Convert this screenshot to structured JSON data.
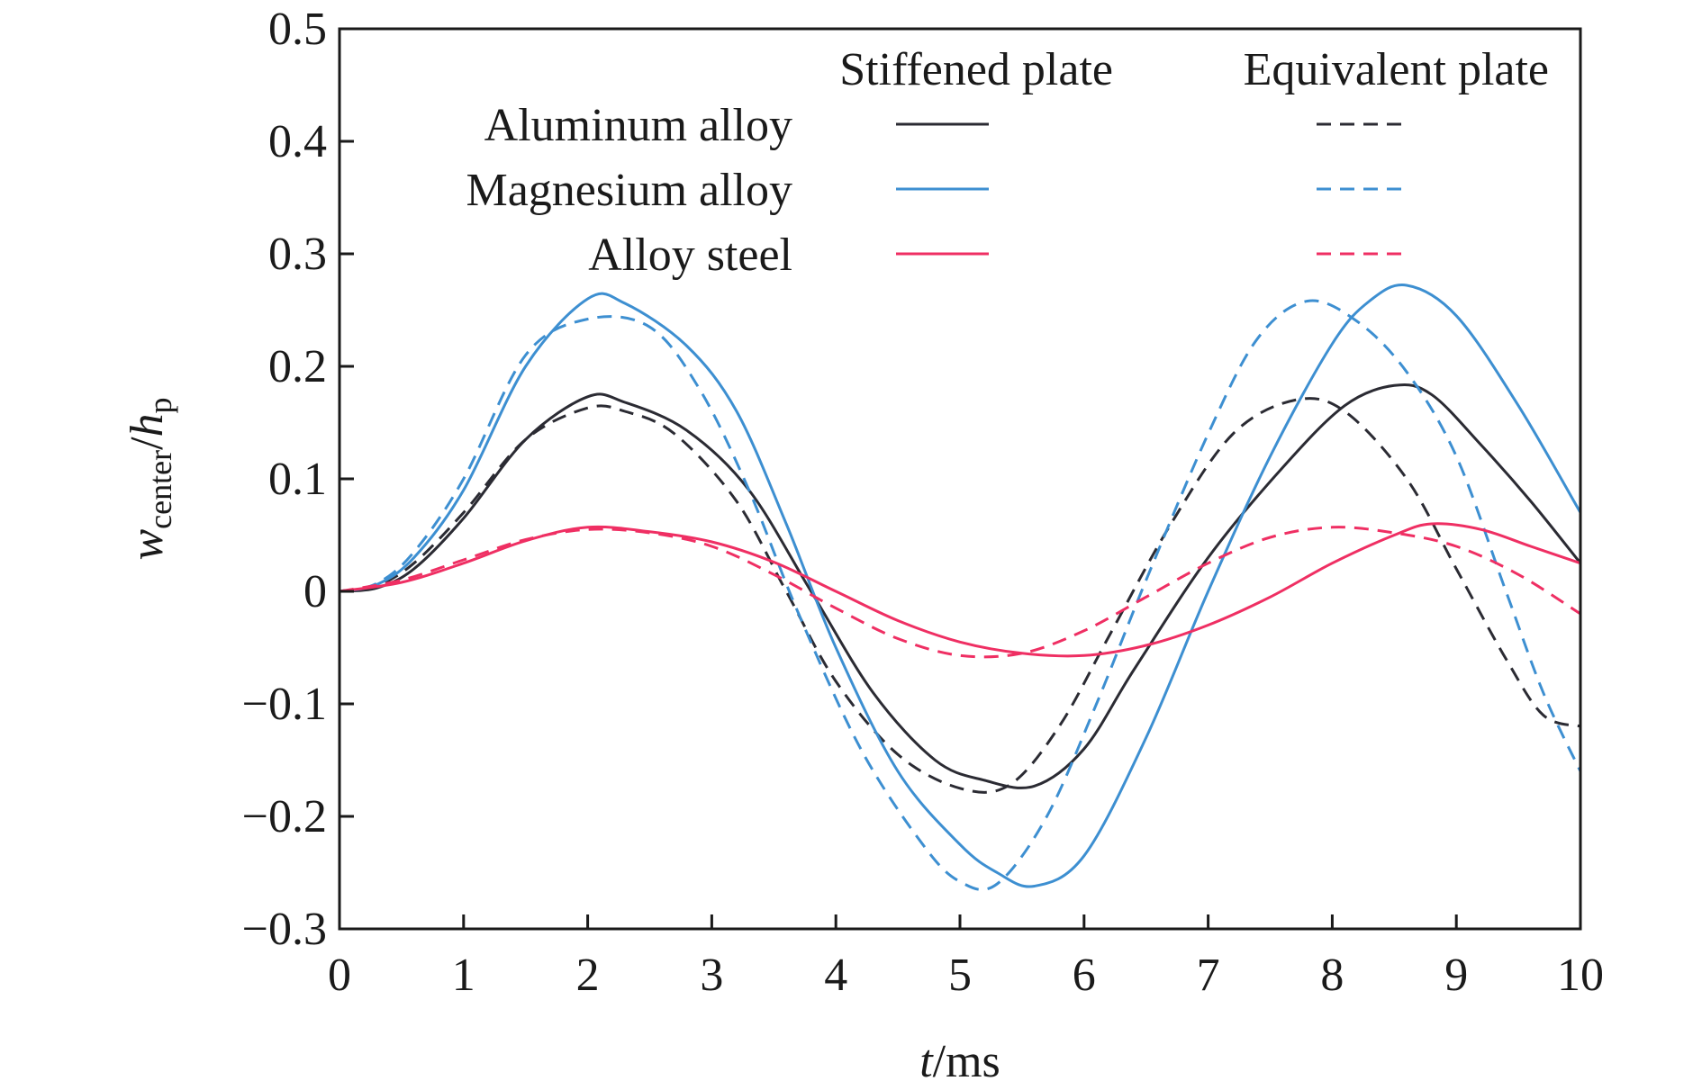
{
  "chart_data": {
    "type": "line",
    "xlabel": {
      "var": "t",
      "unit": "/ms"
    },
    "ylabel": {
      "var": "w",
      "sub1": "center",
      "sep": "/",
      "var2": "h",
      "sub2": "p"
    },
    "xlim": [
      0,
      10
    ],
    "ylim": [
      -0.3,
      0.5
    ],
    "xticks": [
      0,
      1,
      2,
      3,
      4,
      5,
      6,
      7,
      8,
      9,
      10
    ],
    "yticks": [
      0.5,
      0.4,
      0.3,
      0.2,
      0.1,
      0,
      -0.1,
      -0.2,
      -0.3
    ],
    "ytick_labels": [
      "0.5",
      "0.4",
      "0.3",
      "0.2",
      "0.1",
      "0",
      "−0.1",
      "−0.2",
      "−0.3"
    ],
    "legend": {
      "column_headers": [
        "Stiffened plate",
        "Equivalent plate"
      ],
      "rows": [
        "Aluminum alloy",
        "Magnesium alloy",
        "Alloy steel"
      ]
    },
    "colors": {
      "aluminum": "#2b2b33",
      "magnesium": "#3d8fd1",
      "steel": "#ef2f63"
    },
    "series": [
      {
        "material": "aluminum",
        "plate": "stiffened",
        "style": "solid",
        "x": [
          0,
          0.3,
          0.6,
          1.0,
          1.5,
          2.0,
          2.3,
          2.8,
          3.3,
          3.8,
          4.3,
          4.8,
          5.2,
          5.6,
          6.0,
          6.4,
          7.0,
          7.6,
          8.1,
          8.5,
          8.8,
          9.2,
          9.6,
          10.0
        ],
        "y": [
          0,
          0.003,
          0.02,
          0.065,
          0.135,
          0.173,
          0.168,
          0.143,
          0.09,
          0.0,
          -0.09,
          -0.15,
          -0.168,
          -0.173,
          -0.14,
          -0.07,
          0.03,
          0.11,
          0.165,
          0.183,
          0.175,
          0.13,
          0.08,
          0.025
        ]
      },
      {
        "material": "aluminum",
        "plate": "equivalent",
        "style": "dashed",
        "x": [
          0,
          0.3,
          0.6,
          1.0,
          1.5,
          2.0,
          2.3,
          2.7,
          3.2,
          3.6,
          4.0,
          4.5,
          5.0,
          5.4,
          5.8,
          6.2,
          6.7,
          7.2,
          7.7,
          8.1,
          8.6,
          9.0,
          9.4,
          9.7,
          10.0
        ],
        "y": [
          0,
          0.005,
          0.025,
          0.07,
          0.135,
          0.163,
          0.16,
          0.14,
          0.08,
          0.0,
          -0.08,
          -0.145,
          -0.175,
          -0.172,
          -0.12,
          -0.04,
          0.06,
          0.14,
          0.17,
          0.16,
          0.1,
          0.02,
          -0.06,
          -0.11,
          -0.12
        ]
      },
      {
        "material": "magnesium",
        "plate": "stiffened",
        "style": "solid",
        "x": [
          0,
          0.3,
          0.6,
          1.0,
          1.5,
          2.0,
          2.3,
          2.8,
          3.2,
          3.6,
          4.0,
          4.5,
          5.0,
          5.3,
          5.6,
          6.0,
          6.5,
          7.0,
          7.5,
          8.0,
          8.3,
          8.6,
          9.0,
          9.5,
          10.0
        ],
        "y": [
          0,
          0.006,
          0.03,
          0.09,
          0.2,
          0.26,
          0.256,
          0.218,
          0.16,
          0.06,
          -0.05,
          -0.16,
          -0.225,
          -0.25,
          -0.262,
          -0.235,
          -0.13,
          0.0,
          0.12,
          0.22,
          0.258,
          0.272,
          0.245,
          0.165,
          0.07
        ]
      },
      {
        "material": "magnesium",
        "plate": "equivalent",
        "style": "dashed",
        "x": [
          0,
          0.3,
          0.6,
          1.0,
          1.5,
          2.0,
          2.5,
          2.9,
          3.3,
          3.7,
          4.2,
          4.7,
          5.0,
          5.3,
          5.7,
          6.1,
          6.5,
          7.0,
          7.4,
          7.8,
          8.2,
          8.6,
          9.0,
          9.4,
          9.7,
          10.0
        ],
        "y": [
          0,
          0.007,
          0.035,
          0.1,
          0.21,
          0.242,
          0.235,
          0.18,
          0.09,
          -0.02,
          -0.14,
          -0.225,
          -0.258,
          -0.26,
          -0.2,
          -0.1,
          0.01,
          0.14,
          0.225,
          0.258,
          0.24,
          0.195,
          0.12,
          0.0,
          -0.09,
          -0.16
        ]
      },
      {
        "material": "steel",
        "plate": "stiffened",
        "style": "solid",
        "x": [
          0,
          0.5,
          1.0,
          1.5,
          2.0,
          2.5,
          3.0,
          3.5,
          4.0,
          4.5,
          5.0,
          5.5,
          6.0,
          6.5,
          7.0,
          7.5,
          8.0,
          8.5,
          8.8,
          9.2,
          9.6,
          10.0
        ],
        "y": [
          0,
          0.008,
          0.025,
          0.045,
          0.057,
          0.053,
          0.044,
          0.026,
          0.0,
          -0.026,
          -0.045,
          -0.055,
          -0.057,
          -0.048,
          -0.03,
          -0.005,
          0.025,
          0.05,
          0.06,
          0.055,
          0.04,
          0.025
        ]
      },
      {
        "material": "steel",
        "plate": "equivalent",
        "style": "dashed",
        "x": [
          0,
          0.5,
          1.0,
          1.5,
          2.0,
          2.5,
          3.0,
          3.5,
          4.0,
          4.5,
          5.0,
          5.5,
          6.0,
          6.5,
          7.0,
          7.5,
          8.0,
          8.5,
          9.0,
          9.5,
          10.0
        ],
        "y": [
          0,
          0.01,
          0.028,
          0.046,
          0.055,
          0.052,
          0.04,
          0.015,
          -0.015,
          -0.042,
          -0.057,
          -0.055,
          -0.035,
          -0.005,
          0.025,
          0.048,
          0.057,
          0.052,
          0.04,
          0.015,
          -0.02
        ]
      }
    ]
  }
}
